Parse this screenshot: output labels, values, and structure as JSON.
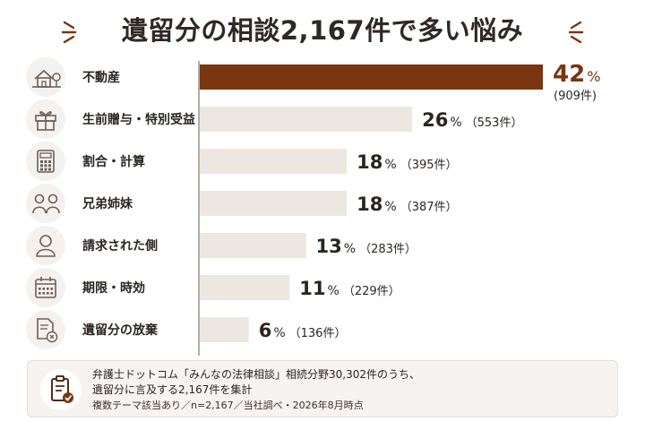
{
  "title": "遺留分の相談2,167件で多い悩み",
  "chart_data": {
    "type": "bar",
    "orientation": "horizontal",
    "categories": [
      "不動産",
      "生前贈与・特別受益",
      "割合・計算",
      "兄弟姉妹",
      "請求された側",
      "期限・時効",
      "遺留分の放棄"
    ],
    "icons": [
      "house-tree-icon",
      "gift-icon",
      "calculator-icon",
      "siblings-icon",
      "person-icon",
      "calendar-icon",
      "document-x-icon"
    ],
    "values": [
      42,
      26,
      18,
      18,
      13,
      11,
      6
    ],
    "counts": [
      909,
      553,
      395,
      387,
      283,
      229,
      136
    ],
    "pct_unit": "%",
    "count_labels": [
      "(909件)",
      "（553件）",
      "（395件）",
      "（387件）",
      "（283件）",
      "（229件）",
      "（136件）"
    ],
    "highlight_color": "#7a3511",
    "bar_color": "#ede7e1",
    "xlim": [
      0,
      42
    ]
  },
  "footer": {
    "icon": "clipboard-check-icon",
    "line1": "弁護士ドットコム「みんなの法律相談」相続分野30,302件のうち、",
    "line2": "遺留分に言及する2,167件を集計",
    "line3": "複数テーマ該当あり／n=2,167／当社調べ・2026年8月時点"
  }
}
